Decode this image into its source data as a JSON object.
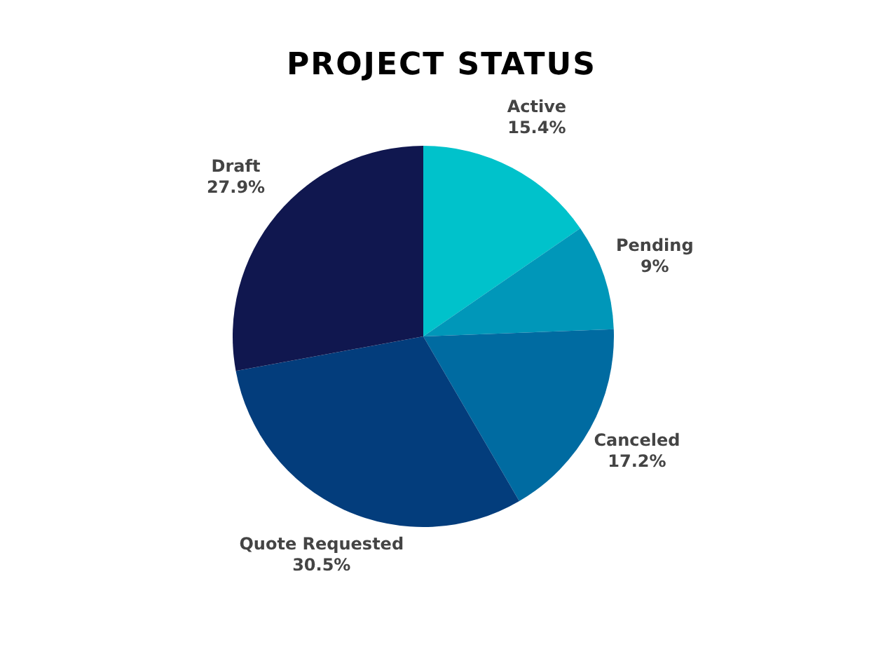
{
  "chart_data": {
    "type": "pie",
    "title": "PROJECT STATUS",
    "categories": [
      "Active",
      "Pending",
      "Canceled",
      "Quote Requested",
      "Draft"
    ],
    "values": [
      15.4,
      9,
      17.2,
      30.5,
      27.9
    ],
    "value_labels": [
      "15.4%",
      "9%",
      "17.2%",
      "30.5%",
      "27.9%"
    ],
    "colors": [
      "#00c2cb",
      "#0097b9",
      "#006ba1",
      "#033d7c",
      "#10174f"
    ],
    "legend": false
  }
}
